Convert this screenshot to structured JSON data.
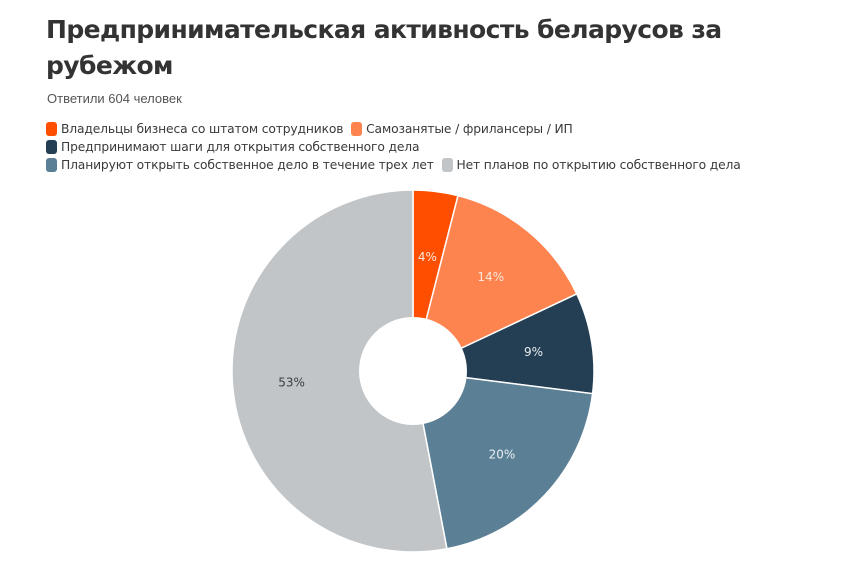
{
  "header": {
    "title": "Предпринимательская активность беларусов за рубежом",
    "subtitle": "Ответили 604 человек"
  },
  "legend": {
    "items": [
      {
        "label": "Владельцы бизнеса со штатом сотрудников",
        "color": "#fe4f00"
      },
      {
        "label": "Самозанятые / фрилансеры / ИП",
        "color": "#fd834f"
      },
      {
        "label": "Предпринимают шаги для открытия собственного дела",
        "color": "#243f53"
      },
      {
        "label": "Планируют открыть собственное дело в течение трех лет",
        "color": "#5b7f95"
      },
      {
        "label": "Нет планов по открытию собственного дела",
        "color": "#c1c5c8"
      }
    ]
  },
  "chart_data": {
    "type": "pie",
    "variant": "donut",
    "title": "Предпринимательская активность беларусов за рубежом",
    "subtitle": "Ответили 604 человек",
    "categories": [
      "Владельцы бизнеса со штатом сотрудников",
      "Самозанятые / фрилансеры / ИП",
      "Предпринимают шаги для открытия собственного дела",
      "Планируют открыть собственное дело в течение трех лет",
      "Нет планов по открытию собственного дела"
    ],
    "values": [
      4,
      14,
      9,
      20,
      53
    ],
    "labels": [
      "4%",
      "14%",
      "9%",
      "20%",
      "53%"
    ],
    "colors": [
      "#fe4f00",
      "#fd834f",
      "#243f53",
      "#5b7f95",
      "#c1c5c8"
    ],
    "label_colors": [
      "#f3e6dc",
      "#fbe8dc",
      "#e6ecf0",
      "#e9eff3",
      "#3a3f44"
    ],
    "unit": "%",
    "legend_position": "top",
    "start_angle": 0,
    "direction": "clockwise"
  }
}
